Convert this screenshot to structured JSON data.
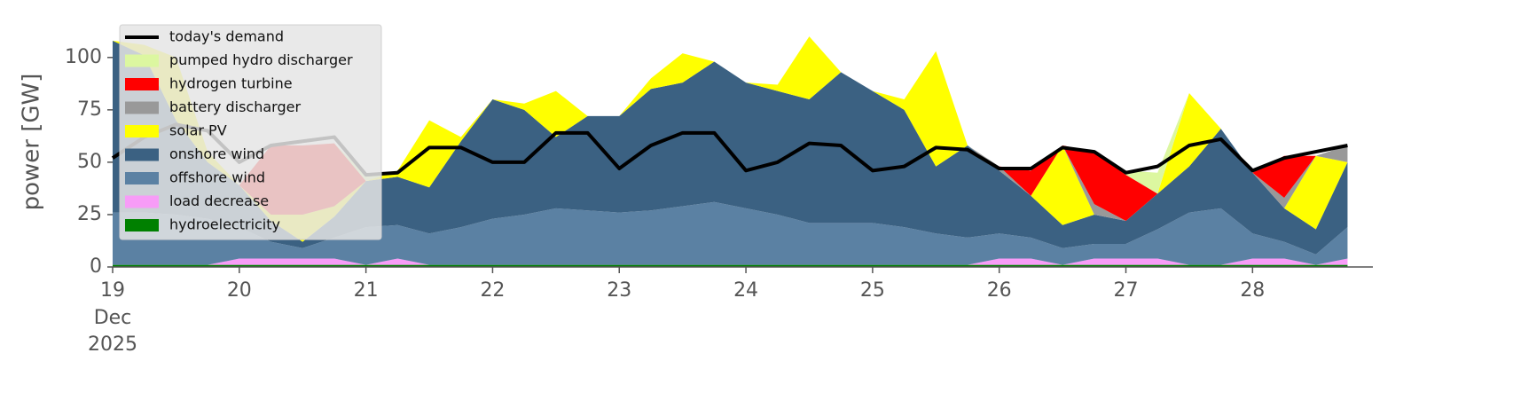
{
  "chart_data": {
    "type": "stacked_area",
    "ylabel": "power [GW]",
    "x": [
      19,
      19.25,
      19.5,
      19.75,
      20,
      20.25,
      20.5,
      20.75,
      21,
      21.25,
      21.5,
      21.75,
      22,
      22.25,
      22.5,
      22.75,
      23,
      23.25,
      23.5,
      23.75,
      24,
      24.25,
      24.5,
      24.75,
      25,
      25.25,
      25.5,
      25.75,
      26,
      26.25,
      26.5,
      26.75,
      27,
      27.25,
      27.5,
      27.75,
      28,
      28.25,
      28.5,
      28.75
    ],
    "xlim": [
      19,
      28.95
    ],
    "xticks": [
      19,
      20,
      21,
      22,
      23,
      24,
      25,
      26,
      27,
      28
    ],
    "xtick_sublabels": [
      "Dec",
      "2025"
    ],
    "ylim": [
      0,
      116
    ],
    "yticks": [
      0,
      25,
      50,
      75,
      100
    ],
    "legend": "upper left",
    "line": {
      "name": "today's demand",
      "color": "#000000",
      "values": [
        52,
        62,
        68,
        65,
        50,
        58,
        60,
        62,
        44,
        45,
        57,
        57,
        50,
        50,
        64,
        64,
        47,
        58,
        64,
        64,
        46,
        50,
        59,
        58,
        46,
        48,
        57,
        56,
        47,
        47,
        57,
        55,
        45,
        48,
        58,
        61,
        46,
        52,
        55,
        58
      ]
    },
    "series": [
      {
        "name": "hydroelectricity",
        "color": "#008000",
        "values": [
          1,
          1,
          1,
          1,
          1,
          1,
          1,
          1,
          1,
          1,
          1,
          1,
          1,
          1,
          1,
          1,
          1,
          1,
          1,
          1,
          1,
          1,
          1,
          1,
          1,
          1,
          1,
          1,
          1,
          1,
          1,
          1,
          1,
          1,
          1,
          1,
          1,
          1,
          1,
          1
        ]
      },
      {
        "name": "load decrease",
        "color": "#f79cf7",
        "values": [
          0,
          0,
          0,
          0,
          3,
          3,
          3,
          3,
          0,
          3,
          0,
          0,
          0,
          0,
          0,
          0,
          0,
          0,
          0,
          0,
          0,
          0,
          0,
          0,
          0,
          0,
          0,
          0,
          3,
          3,
          0,
          3,
          3,
          3,
          0,
          0,
          3,
          3,
          0,
          3
        ]
      },
      {
        "name": "offshore wind",
        "color": "#5b81a3",
        "values": [
          25,
          25,
          24,
          22,
          15,
          8,
          5,
          10,
          18,
          16,
          15,
          18,
          22,
          24,
          27,
          26,
          25,
          26,
          28,
          30,
          27,
          24,
          20,
          20,
          20,
          18,
          15,
          13,
          12,
          10,
          8,
          7,
          7,
          14,
          25,
          27,
          12,
          8,
          5,
          15
        ]
      },
      {
        "name": "onshore wind",
        "color": "#3b6182",
        "values": [
          82,
          75,
          45,
          27,
          20,
          10,
          3,
          10,
          22,
          23,
          22,
          41,
          57,
          50,
          34,
          45,
          46,
          58,
          59,
          67,
          60,
          59,
          59,
          72,
          63,
          56,
          32,
          44,
          30,
          20,
          11,
          14,
          11,
          17,
          22,
          38,
          29,
          16,
          12,
          31
        ]
      },
      {
        "name": "solar PV",
        "color": "#ffff00",
        "values": [
          0,
          5,
          30,
          5,
          0,
          3,
          13,
          5,
          0,
          3,
          32,
          2,
          0,
          3,
          22,
          0,
          0,
          5,
          14,
          0,
          0,
          3,
          30,
          0,
          0,
          5,
          55,
          0,
          0,
          0,
          38,
          0,
          0,
          0,
          35,
          0,
          0,
          0,
          35,
          0
        ]
      },
      {
        "name": "battery discharger",
        "color": "#999999",
        "values": [
          0,
          0,
          0,
          0,
          0,
          0,
          0,
          0,
          0,
          0,
          0,
          0,
          0,
          0,
          0,
          0,
          0,
          0,
          0,
          0,
          0,
          0,
          0,
          0,
          0,
          0,
          0,
          0,
          2,
          0,
          0,
          5,
          0,
          0,
          0,
          0,
          0,
          5,
          0,
          8
        ]
      },
      {
        "name": "hydrogen turbine",
        "color": "#ff0000",
        "values": [
          0,
          0,
          0,
          0,
          0,
          33,
          33,
          30,
          0,
          0,
          0,
          0,
          0,
          0,
          0,
          0,
          0,
          0,
          0,
          0,
          0,
          0,
          0,
          0,
          0,
          0,
          0,
          0,
          0,
          12,
          0,
          25,
          22,
          0,
          0,
          0,
          0,
          20,
          0,
          0
        ]
      },
      {
        "name": "pumped hydro discharger",
        "color": "#dcf7a0",
        "values": [
          0,
          0,
          0,
          0,
          0,
          0,
          0,
          0,
          3,
          0,
          0,
          0,
          0,
          0,
          0,
          0,
          0,
          0,
          0,
          0,
          0,
          0,
          0,
          0,
          0,
          0,
          0,
          0,
          0,
          0,
          0,
          0,
          2,
          10,
          0,
          0,
          0,
          0,
          0,
          0
        ]
      }
    ]
  }
}
